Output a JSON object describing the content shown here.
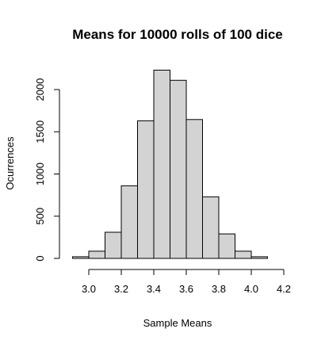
{
  "chart_data": {
    "type": "histogram",
    "title": "Means for 10000 rolls of 100 dice",
    "xlabel": "Sample Means",
    "ylabel": "Ocurrences",
    "bins": [
      {
        "from": 2.9,
        "to": 3.0,
        "count": 20
      },
      {
        "from": 3.0,
        "to": 3.1,
        "count": 85
      },
      {
        "from": 3.1,
        "to": 3.2,
        "count": 310
      },
      {
        "from": 3.2,
        "to": 3.3,
        "count": 860
      },
      {
        "from": 3.3,
        "to": 3.4,
        "count": 1630
      },
      {
        "from": 3.4,
        "to": 3.5,
        "count": 2230
      },
      {
        "from": 3.5,
        "to": 3.6,
        "count": 2110
      },
      {
        "from": 3.6,
        "to": 3.7,
        "count": 1645
      },
      {
        "from": 3.7,
        "to": 3.8,
        "count": 730
      },
      {
        "from": 3.8,
        "to": 3.9,
        "count": 290
      },
      {
        "from": 3.9,
        "to": 4.0,
        "count": 85
      },
      {
        "from": 4.0,
        "to": 4.1,
        "count": 20
      }
    ],
    "x_ticks": [
      "3.0",
      "3.2",
      "3.4",
      "3.6",
      "3.8",
      "4.0",
      "4.2"
    ],
    "y_ticks": [
      "0",
      "500",
      "1000",
      "1500",
      "2000"
    ],
    "xlim": [
      3.0,
      4.2
    ],
    "ylim": [
      0,
      2000
    ],
    "bar_color": "#d3d3d3",
    "grid": false
  }
}
